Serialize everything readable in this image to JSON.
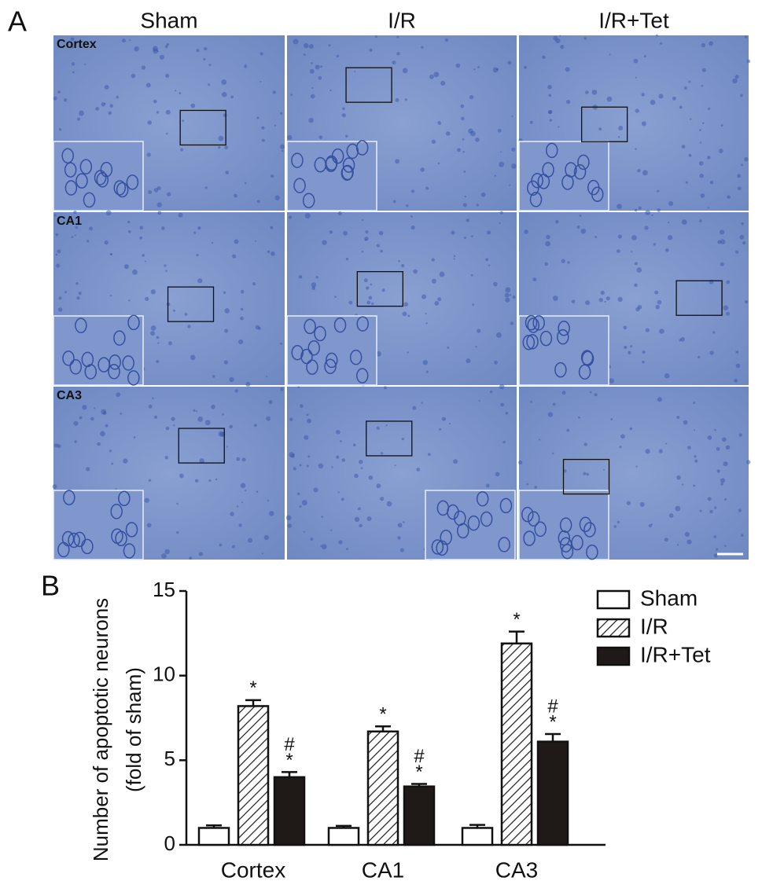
{
  "panel_a": {
    "label": "A",
    "columns": [
      "Sham",
      "I/R",
      "I/R+Tet"
    ],
    "rows": [
      "Cortex",
      "CA1",
      "CA3"
    ]
  },
  "panel_b_label": "B",
  "chart_data": {
    "type": "bar",
    "ylabel": [
      "Number of apoptotic neurons",
      "(fold of sham)"
    ],
    "categories": [
      "Cortex",
      "CA1",
      "CA3"
    ],
    "series": [
      {
        "name": "Sham",
        "color": "#ffffff",
        "values": [
          1.0,
          1.0,
          1.0
        ],
        "errors": [
          0.15,
          0.12,
          0.18
        ]
      },
      {
        "name": "I/R",
        "color": "#ffffff",
        "pattern": "hatch",
        "values": [
          8.2,
          6.7,
          11.9
        ],
        "errors": [
          0.35,
          0.3,
          0.7
        ],
        "annotations": [
          [
            "*"
          ],
          [
            "*"
          ],
          [
            "*"
          ]
        ]
      },
      {
        "name": "I/R+Tet",
        "color": "#1f1a17",
        "values": [
          4.0,
          3.45,
          6.1
        ],
        "errors": [
          0.3,
          0.15,
          0.45
        ],
        "annotations": [
          [
            "#",
            "*"
          ],
          [
            "#",
            "*"
          ],
          [
            "#",
            "*"
          ]
        ]
      }
    ],
    "ylim": [
      0,
      15
    ],
    "yticks": [
      0,
      5,
      10,
      15
    ],
    "grid": false,
    "legend": "top-right"
  }
}
